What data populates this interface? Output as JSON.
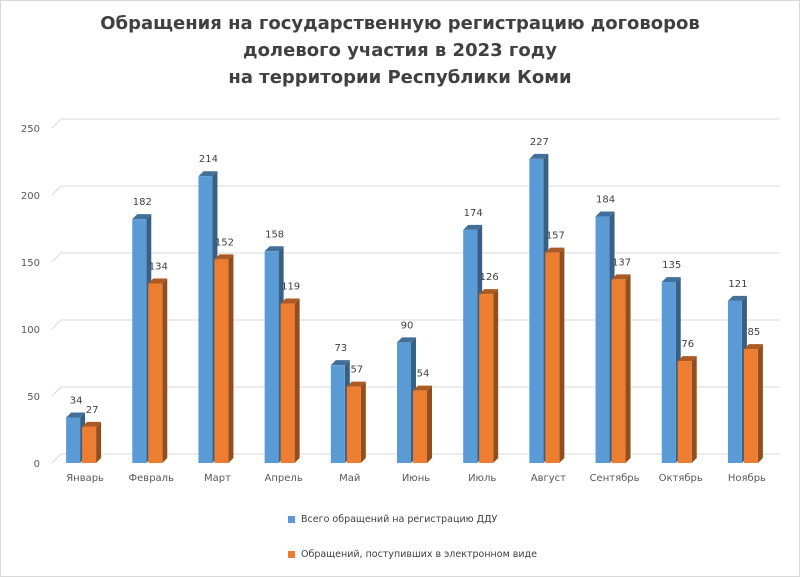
{
  "chart_data": {
    "type": "bar",
    "title_lines": [
      "Обращения на государственную регистрацию договоров",
      "долевого участия в 2023 году",
      "на территории Республики Коми"
    ],
    "categories": [
      "Январь",
      "Февраль",
      "Март",
      "Апрель",
      "Май",
      "Июнь",
      "Июль",
      "Август",
      "Сентябрь",
      "Октябрь",
      "Ноябрь"
    ],
    "series": [
      {
        "name": "Всего обращений на регистрацию ДДУ",
        "values": [
          34,
          182,
          214,
          158,
          73,
          90,
          174,
          227,
          184,
          135,
          121
        ],
        "color": "#5b9bd5"
      },
      {
        "name": "Обращений, поступивших в электронном виде",
        "values": [
          27,
          134,
          152,
          119,
          57,
          54,
          126,
          157,
          137,
          76,
          85
        ],
        "color": "#ed7d31"
      }
    ],
    "yticks": [
      "0",
      "50",
      "100",
      "150",
      "200",
      "250"
    ],
    "ylim": [
      0,
      250
    ],
    "grid": true,
    "legend_position": "bottom",
    "style": "3d-column"
  }
}
